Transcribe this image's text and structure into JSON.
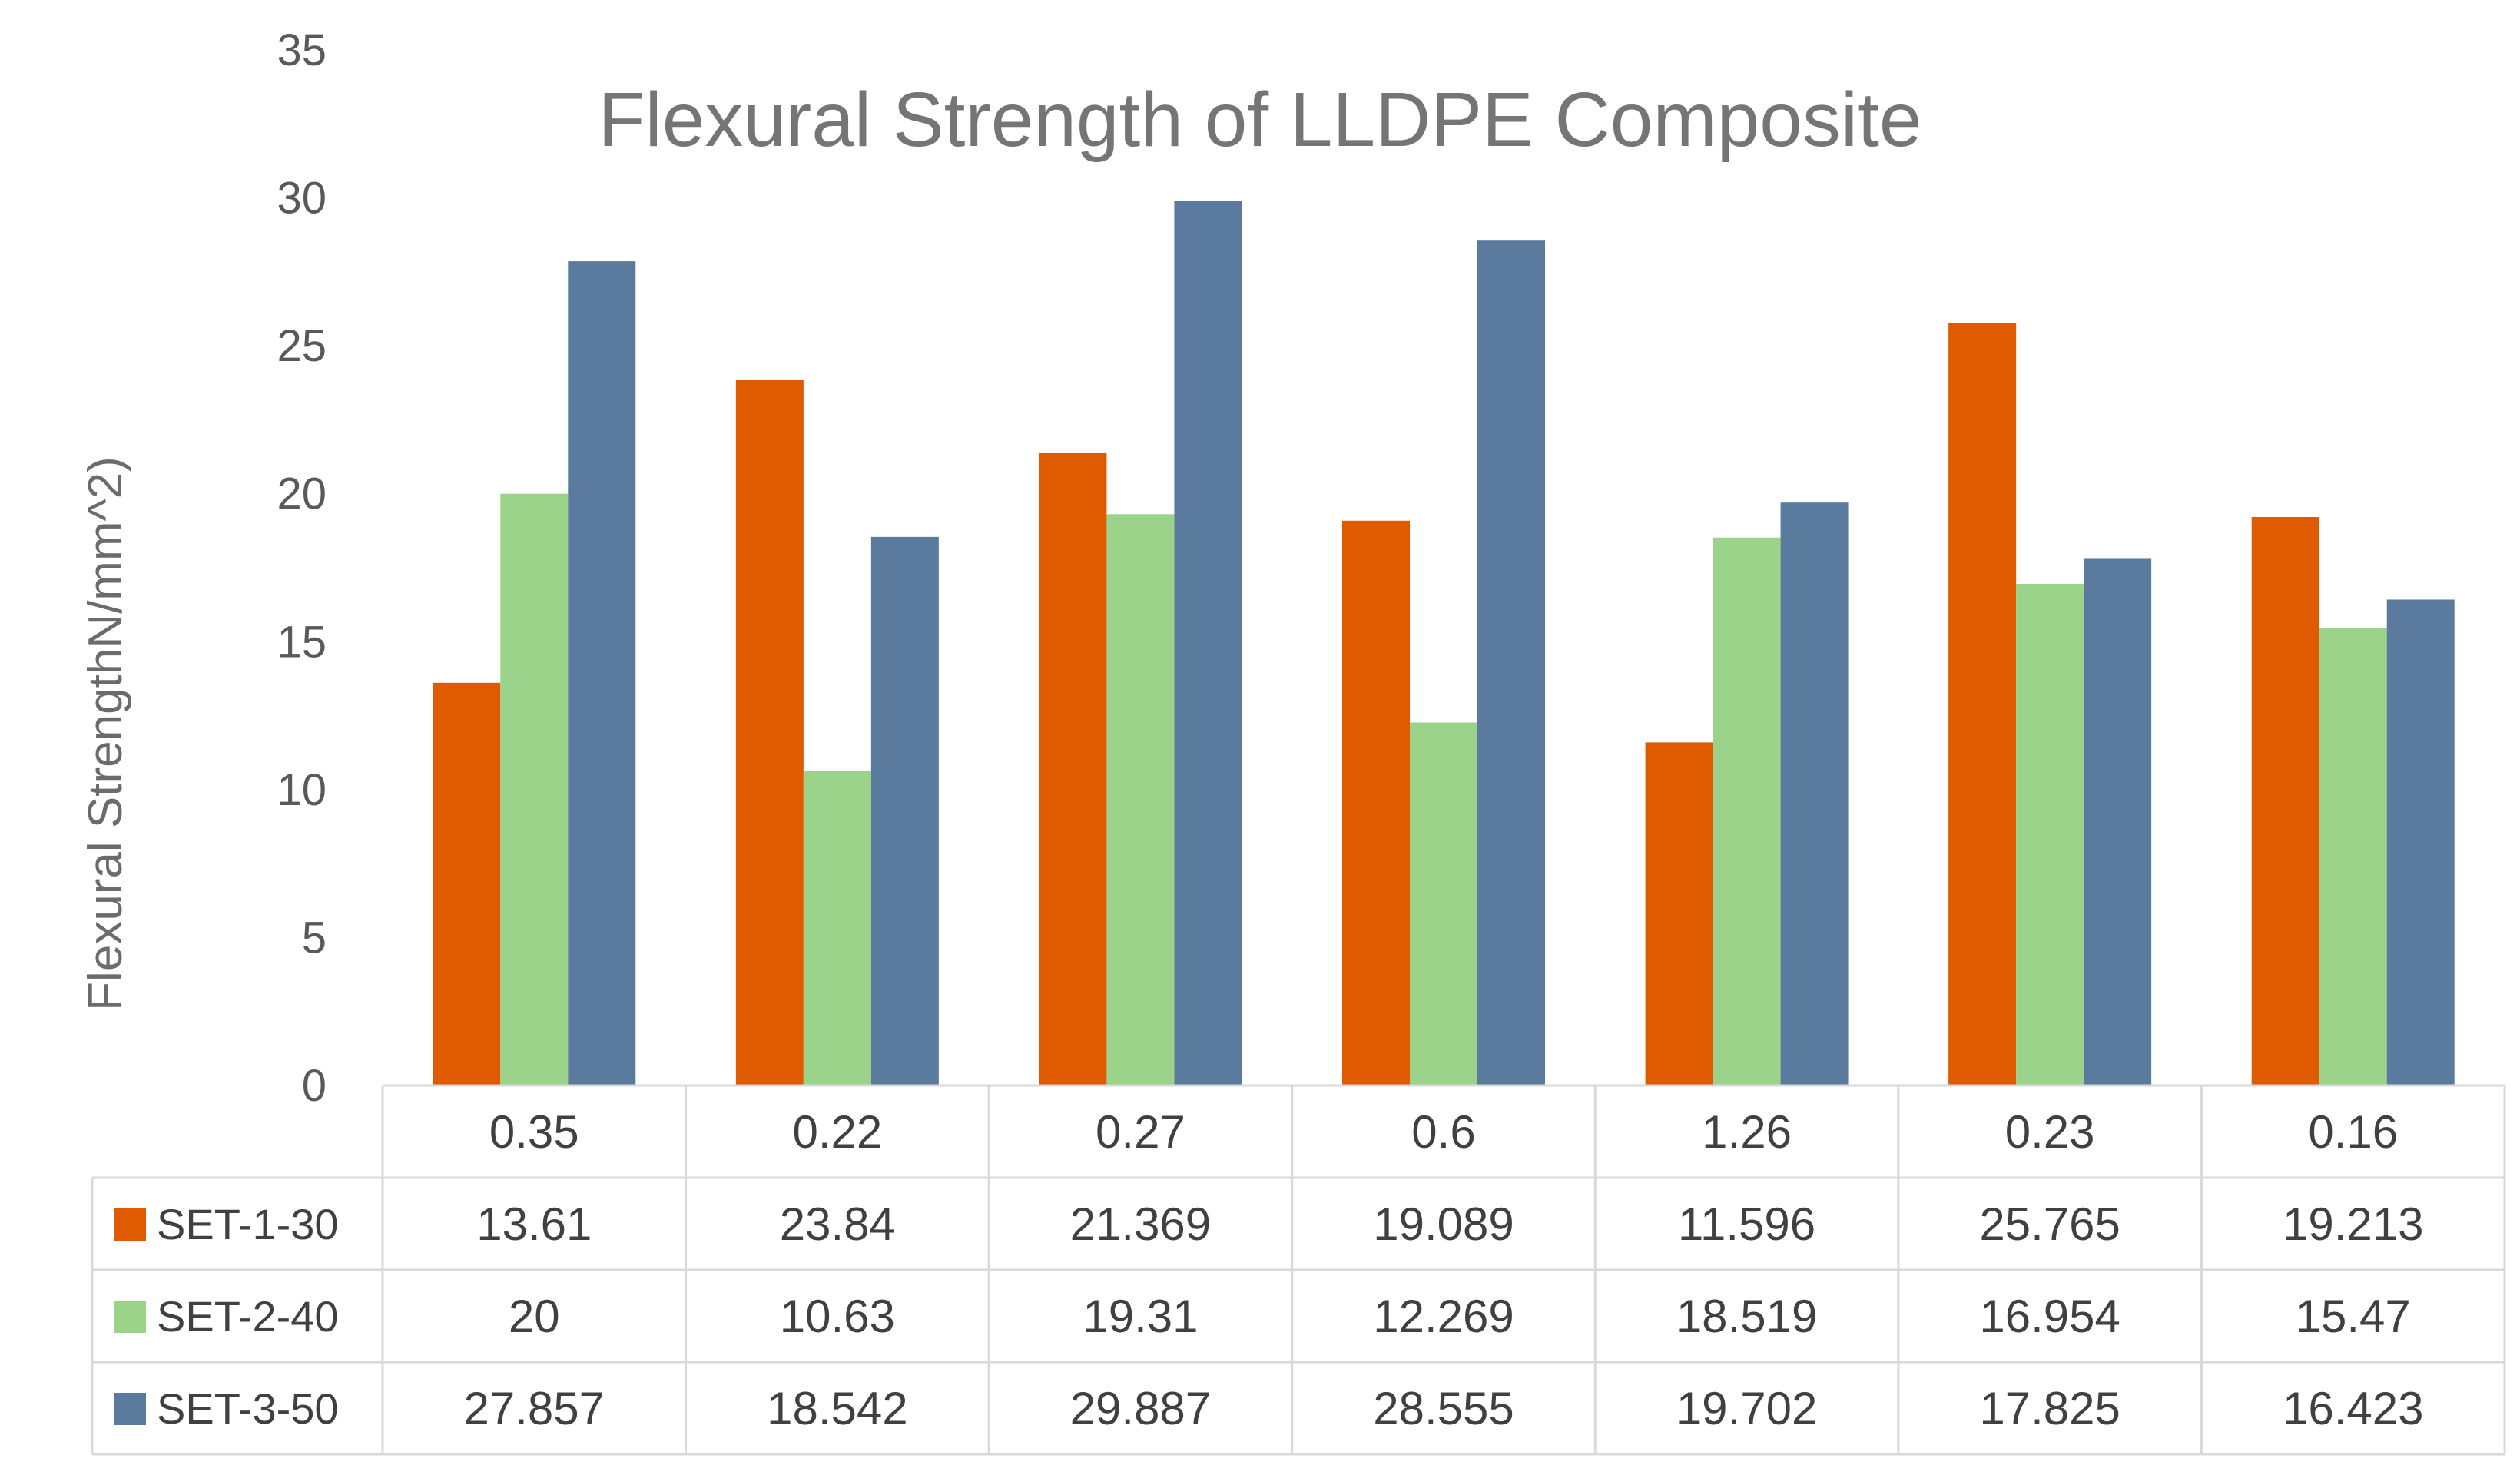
{
  "chart_data": {
    "type": "bar",
    "title": "Flexural Strength of LLDPE Composite",
    "xlabel": "",
    "ylabel": "Flexural StrengthN/mm^2)",
    "ylim": [
      0,
      35
    ],
    "yticks": [
      "0",
      "5",
      "10",
      "15",
      "20",
      "25",
      "30",
      "35"
    ],
    "grid": false,
    "legend": "data-table",
    "categories": [
      "0.35",
      "0.22",
      "0.27",
      "0.6",
      "1.26",
      "0.23",
      "0.16"
    ],
    "series": [
      {
        "name": "SET-1-30",
        "color": "#e05a00",
        "values": [
          13.61,
          23.84,
          21.369,
          19.089,
          11.596,
          25.765,
          19.213
        ],
        "labels": [
          "13.61",
          "23.84",
          "21.369",
          "19.089",
          "11.596",
          "25.765",
          "19.213"
        ]
      },
      {
        "name": "SET-2-40",
        "color": "#9bd38b",
        "values": [
          20,
          10.63,
          19.31,
          12.269,
          18.519,
          16.954,
          15.47
        ],
        "labels": [
          "20",
          "10.63",
          "19.31",
          "12.269",
          "18.519",
          "16.954",
          "15.47"
        ]
      },
      {
        "name": "SET-3-50",
        "color": "#5a7b9e",
        "values": [
          27.857,
          18.542,
          29.887,
          28.555,
          19.702,
          17.825,
          16.423
        ],
        "labels": [
          "27.857",
          "18.542",
          "29.887",
          "28.555",
          "19.702",
          "17.825",
          "16.423"
        ]
      }
    ]
  }
}
